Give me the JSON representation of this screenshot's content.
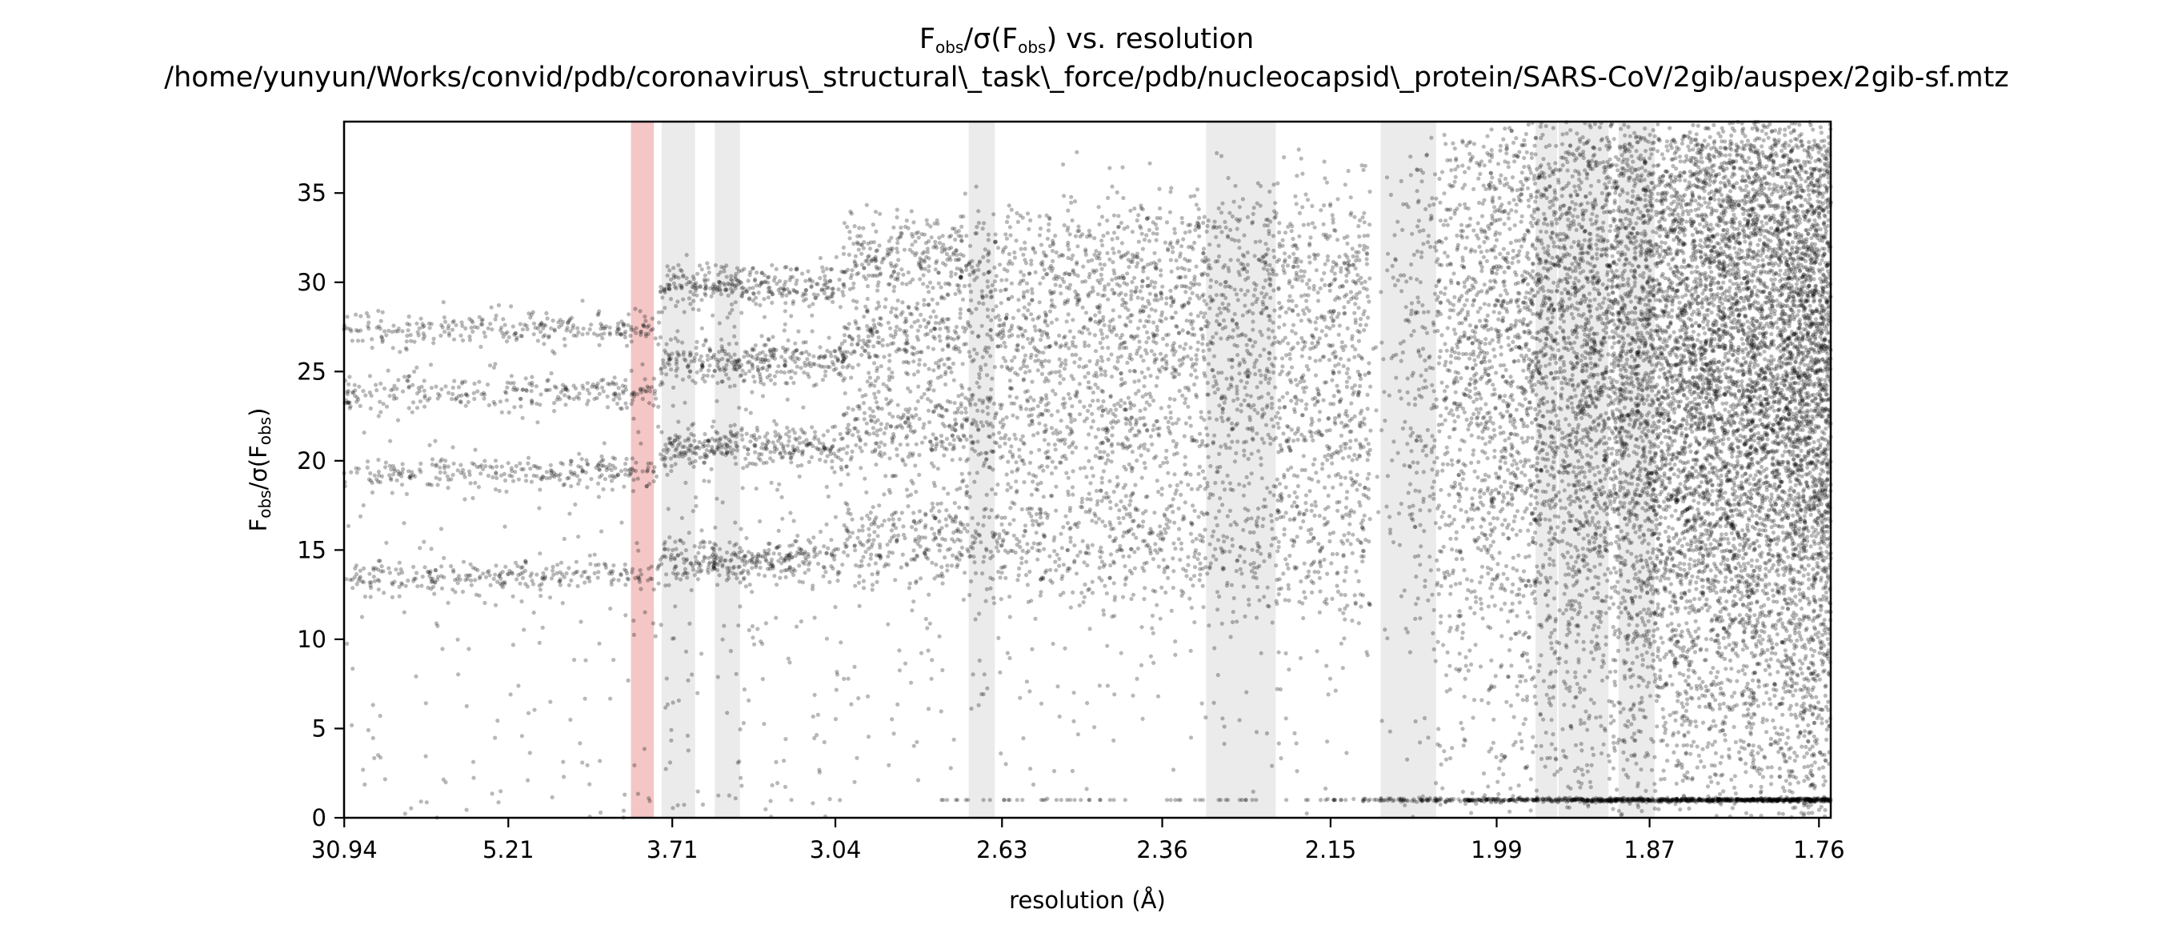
{
  "chart_data": {
    "type": "scatter",
    "title_main": "F",
    "title_sub1": "obs",
    "title_mid": "/σ(F",
    "title_sub2": "obs",
    "title_end": ") vs. resolution",
    "subtitle": "/home/yunyun/Works/convid/pdb/coronavirus\\_structural\\_task\\_force/pdb/nucleocapsid\\_protein/SARS-CoV/2gib/auspex/2gib-sf.mtz",
    "xlabel": "resolution (Å)",
    "ylabel_main": "F",
    "ylabel_sub1": "obs",
    "ylabel_mid": "/σ(F",
    "ylabel_sub2": "obs",
    "ylabel_end": ")",
    "x_axis": "1/d^2 (reciprocal resolution squared, Å^-2)",
    "xlim": [
      0.001,
      0.3254
    ],
    "ylim": [
      0,
      39
    ],
    "x_ticks": [
      {
        "value": 0.00104,
        "label": "30.94"
      },
      {
        "value": 0.03684,
        "label": "5.21"
      },
      {
        "value": 0.07262,
        "label": "3.71"
      },
      {
        "value": 0.10821,
        "label": "3.04"
      },
      {
        "value": 0.14457,
        "label": "2.63"
      },
      {
        "value": 0.17953,
        "label": "2.36"
      },
      {
        "value": 0.21626,
        "label": "2.15"
      },
      {
        "value": 0.2525,
        "label": "1.99"
      },
      {
        "value": 0.28587,
        "label": "1.87"
      },
      {
        "value": 0.32283,
        "label": "1.76"
      }
    ],
    "y_ticks": [
      0,
      5,
      10,
      15,
      20,
      25,
      30,
      35
    ],
    "flagged_ranges": [
      {
        "x0": 0.0636,
        "x1": 0.0686,
        "color": "#f4c6c6"
      },
      {
        "x0": 0.0703,
        "x1": 0.0776,
        "color": "#ebebeb"
      },
      {
        "x0": 0.0819,
        "x1": 0.0874,
        "color": "#ebebeb"
      },
      {
        "x0": 0.1373,
        "x1": 0.143,
        "color": "#ebebeb"
      },
      {
        "x0": 0.1891,
        "x1": 0.2043,
        "color": "#ebebeb"
      },
      {
        "x0": 0.2272,
        "x1": 0.2393,
        "color": "#ebebeb"
      },
      {
        "x0": 0.261,
        "x1": 0.2657,
        "color": "#ebebeb"
      },
      {
        "x0": 0.266,
        "x1": 0.2769,
        "color": "#ebebeb"
      },
      {
        "x0": 0.2791,
        "x1": 0.287,
        "color": "#ebebeb"
      }
    ],
    "point_color": "#000000",
    "point_opacity": 0.28,
    "regions": [
      {
        "x_range": [
          0.001,
          0.07
        ],
        "bands_y": [
          27.4,
          23.8,
          19.3,
          13.5
        ],
        "band_spread": 0.45
      },
      {
        "x_range": [
          0.07,
          0.11
        ],
        "bands_y": [
          29.8,
          25.6,
          20.8,
          14.5
        ],
        "band_spread": 0.6
      },
      {
        "x_range": [
          0.11,
          0.225
        ],
        "bands_y": [
          31.2,
          26.8,
          22.0,
          15.6
        ],
        "band_spread": 1.1
      },
      {
        "x_range": [
          0.225,
          0.3254
        ],
        "bands_y": [
          32.5,
          26.0,
          19.0
        ],
        "band_spread": 3.5
      }
    ],
    "zero_row_y": 1.0
  }
}
